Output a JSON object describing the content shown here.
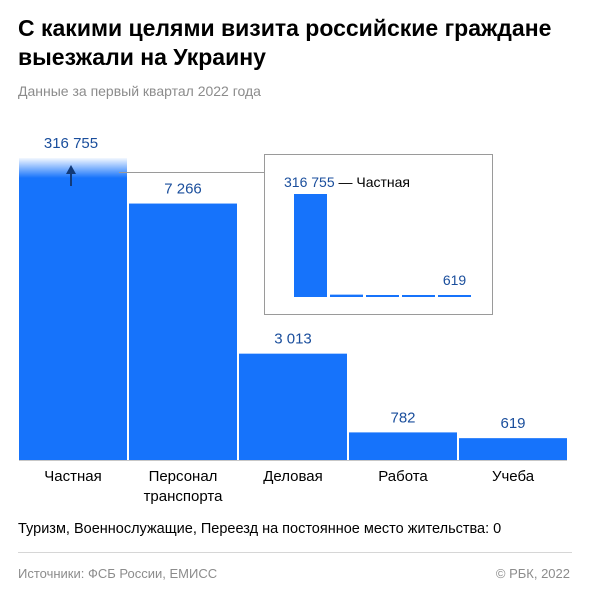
{
  "header": {
    "title": "С какими целями визита российские граждане выезжали на Украину",
    "subtitle": "Данные за первый квартал 2022 года"
  },
  "chart_data": {
    "type": "bar",
    "categories": [
      "Частная",
      "Персонал транспорта",
      "Деловая",
      "Работа",
      "Учеба"
    ],
    "category_lines": [
      [
        "Частная"
      ],
      [
        "Персонал",
        "транспорта"
      ],
      [
        "Деловая"
      ],
      [
        "Работа"
      ],
      [
        "Учеба"
      ]
    ],
    "values": [
      316755,
      7266,
      3013,
      782,
      619
    ],
    "value_labels": [
      "316 755",
      "7 266",
      "3 013",
      "782",
      "619"
    ],
    "truncated_first_bar": true,
    "inset": {
      "type": "bar",
      "values": [
        316755,
        7266,
        3013,
        782,
        619
      ],
      "label_max": "316 755 — Частная",
      "label_min": "619"
    },
    "colors": {
      "bar": "#1673fb",
      "label": "#1a4e9c",
      "axis": "#c7c7c7"
    }
  },
  "footnote": "Туризм, Военнослужащие, Переезд на постоянное место жительства: 0",
  "footer": {
    "source": "Источники: ФСБ России, ЕМИСС",
    "copyright": "© РБК, 2022"
  }
}
